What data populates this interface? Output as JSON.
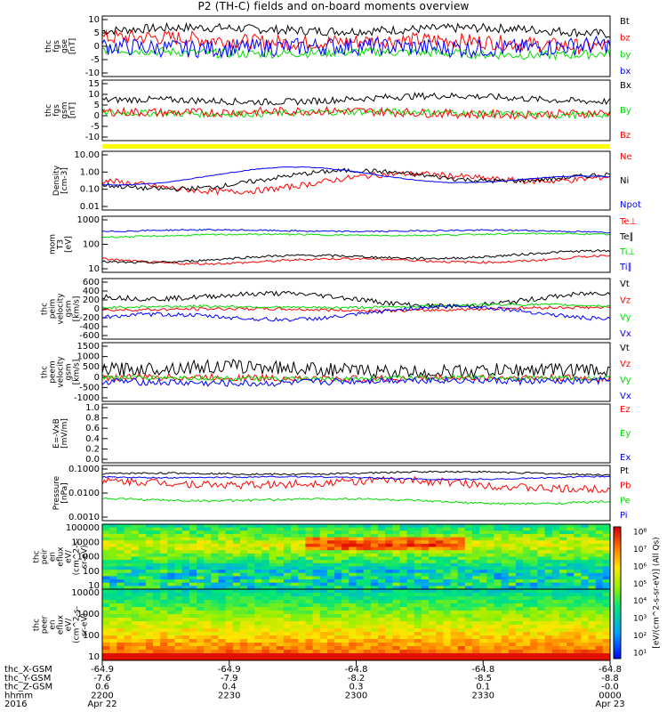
{
  "title": "P2 (TH-C) fields and on-board moments overview",
  "chart_data": [
    {
      "type": "line",
      "id": "fgs_gse",
      "ylabel": [
        "thc",
        "fgs",
        "gse",
        "[nT]"
      ],
      "ylim": [
        -10,
        10
      ],
      "yticks": [
        "10",
        "5",
        "0",
        "-5",
        "-10"
      ],
      "series": [
        {
          "name": "Bt",
          "color": "#000000",
          "base": 5,
          "amp": 1.5,
          "noise": 1.5,
          "abs": true
        },
        {
          "name": "bz",
          "color": "#ff0000",
          "base": 1.5,
          "amp": 1.5,
          "noise": 2.5
        },
        {
          "name": "by",
          "color": "#00dd00",
          "base": -2,
          "amp": 1.0,
          "noise": 1.5
        },
        {
          "name": "bx",
          "color": "#0000ff",
          "base": 0,
          "amp": 1.0,
          "noise": 3.0
        }
      ]
    },
    {
      "type": "line",
      "id": "fgs_gsm",
      "ylabel": [
        "thc",
        "fgs",
        "gsm",
        "[nT]"
      ],
      "ylim": [
        -12,
        15
      ],
      "yticks": [
        "15",
        "10",
        "5",
        "0",
        "-5",
        "-10"
      ],
      "series": [
        {
          "name": "Bx",
          "color": "#000000",
          "base": 6,
          "amp": 2,
          "noise": 1.5
        },
        {
          "name": "By",
          "color": "#00dd00",
          "base": 0,
          "amp": 1,
          "noise": 1.5
        },
        {
          "name": "Bz",
          "color": "#ff0000",
          "base": 0.5,
          "amp": 1,
          "noise": 2
        }
      ]
    },
    {
      "type": "line",
      "id": "density",
      "log": true,
      "ylabel": [
        "Density",
        "[cm-3]"
      ],
      "ylim": [
        0.01,
        10
      ],
      "yticks": [
        "10.00",
        "1.00",
        "0.10",
        "0.01"
      ],
      "series": [
        {
          "name": "Ne",
          "color": "#ff0000",
          "base": -0.5,
          "amp": 0.6,
          "noise": 0.15
        },
        {
          "name": "Ni",
          "color": "#000000",
          "base": -0.5,
          "amp": 0.6,
          "noise": 0.12
        },
        {
          "name": "Npot",
          "color": "#0000ff",
          "base": -0.45,
          "amp": 0.65,
          "noise": 0.02
        }
      ]
    },
    {
      "type": "line",
      "id": "temp",
      "log": true,
      "ylabel": [
        "mom",
        "T3",
        "[eV]"
      ],
      "ylim": [
        8,
        6000
      ],
      "yticks": [
        "1000",
        "100",
        "10"
      ],
      "series": [
        {
          "name": "Te⊥",
          "color": "#ff0000",
          "base": 1.6,
          "amp": 0.3,
          "noise": 0.06
        },
        {
          "name": "Te∥",
          "color": "#000000",
          "base": 1.7,
          "amp": 0.3,
          "noise": 0.06
        },
        {
          "name": "Ti⊥",
          "color": "#00dd00",
          "base": 2.8,
          "amp": 0.1,
          "noise": 0.04
        },
        {
          "name": "Ti∥",
          "color": "#0000ff",
          "base": 3.0,
          "amp": 0.1,
          "noise": 0.04
        }
      ]
    },
    {
      "type": "line",
      "id": "peim_vel",
      "ylabel": [
        "thc",
        "peim",
        "velocity",
        "gsm",
        "[km/s]"
      ],
      "ylim": [
        -600,
        600
      ],
      "yticks": [
        "600",
        "400",
        "200",
        "0",
        "-200",
        "-400",
        "-600"
      ],
      "series": [
        {
          "name": "Vt",
          "color": "#000000",
          "base": 250,
          "amp": 200,
          "noise": 50
        },
        {
          "name": "Vz",
          "color": "#ff0000",
          "base": 0,
          "amp": 40,
          "noise": 30
        },
        {
          "name": "Vy",
          "color": "#00dd00",
          "base": 50,
          "amp": 40,
          "noise": 25
        },
        {
          "name": "Vx",
          "color": "#0000ff",
          "base": -150,
          "amp": 200,
          "noise": 40
        }
      ]
    },
    {
      "type": "line",
      "id": "peem_vel",
      "ylabel": [
        "thc",
        "peem",
        "velocity",
        "gsm",
        "[km/s]"
      ],
      "ylim": [
        -1000,
        1500
      ],
      "yticks": [
        "1500",
        "1000",
        "500",
        "0",
        "-500",
        "-1000"
      ],
      "series": [
        {
          "name": "Vt",
          "color": "#000000",
          "base": 350,
          "amp": 150,
          "noise": 300
        },
        {
          "name": "Vz",
          "color": "#ff0000",
          "base": 0,
          "amp": 50,
          "noise": 150
        },
        {
          "name": "Vy",
          "color": "#00dd00",
          "base": 0,
          "amp": 50,
          "noise": 100
        },
        {
          "name": "Vx",
          "color": "#0000ff",
          "base": -150,
          "amp": 100,
          "noise": 150
        }
      ]
    },
    {
      "type": "line",
      "id": "efield",
      "ylabel": [
        "E=-VxB",
        "[mV/m]"
      ],
      "ylim": [
        0,
        1
      ],
      "yticks": [
        "1.0",
        "0.8",
        "0.6",
        "0.4",
        "0.2",
        "0.0"
      ],
      "series": [
        {
          "name": "Ez",
          "color": "#ff0000"
        },
        {
          "name": "Ey",
          "color": "#00dd00"
        },
        {
          "name": "Ex",
          "color": "#0000ff"
        }
      ]
    },
    {
      "type": "line",
      "id": "pressure",
      "log": true,
      "ylabel": [
        "Pressure",
        "[nPa]"
      ],
      "ylim": [
        0.0005,
        0.15
      ],
      "yticks": [
        "0.1000",
        "0.0100",
        "0.0010"
      ],
      "series": [
        {
          "name": "Pt",
          "color": "#000000",
          "base": -1.2,
          "amp": 0.1,
          "noise": 0.04
        },
        {
          "name": "Pb",
          "color": "#ff0000",
          "base": -1.7,
          "amp": 0.25,
          "noise": 0.18
        },
        {
          "name": "Pe",
          "color": "#00dd00",
          "base": -2.4,
          "amp": 0.15,
          "noise": 0.05
        },
        {
          "name": "Pi",
          "color": "#0000ff",
          "base": -1.35,
          "amp": 0.1,
          "noise": 0.03
        }
      ]
    },
    {
      "type": "heatmap",
      "id": "peir",
      "ylabel": [
        "thc",
        "peir",
        "en",
        "eflux",
        "eV/",
        "(cm^2-s-",
        "sr-eV)"
      ],
      "yticks": [
        "100000",
        "10000",
        "1000",
        "100",
        "10"
      ]
    },
    {
      "type": "heatmap",
      "id": "peer",
      "ylabel": [
        "thc",
        "peer",
        "en",
        "eflux",
        "eV/",
        "(cm^2-s-",
        "sr-eV)"
      ],
      "yticks": [
        "10000",
        "1000",
        "100",
        "10"
      ]
    }
  ],
  "colorbar": {
    "label": "[eV/(cm^2-s-sr-eV)] (All Qs)",
    "ticks": [
      "10⁸",
      "10⁷",
      "10⁶",
      "10⁵",
      "10⁴",
      "10³",
      "10²",
      "10¹"
    ]
  },
  "x_axis": {
    "rows": [
      {
        "label": "thc_X-GSM",
        "values": [
          "-64.9",
          "-64.9",
          "-64.8",
          "-64.8",
          "-64.8"
        ]
      },
      {
        "label": "thc_Y-GSM",
        "values": [
          "-7.6",
          "-7.9",
          "-8.2",
          "-8.5",
          "-8.8"
        ]
      },
      {
        "label": "thc_Z-GSM",
        "values": [
          "0.6",
          "0.4",
          "0.3",
          "0.1",
          "-0.0"
        ]
      },
      {
        "label": "hhmm",
        "values": [
          "2200",
          "2230",
          "2300",
          "2330",
          "0000"
        ]
      },
      {
        "label": "2016",
        "values": [
          "Apr 22",
          "",
          "",
          "",
          "Apr 23"
        ]
      }
    ]
  }
}
